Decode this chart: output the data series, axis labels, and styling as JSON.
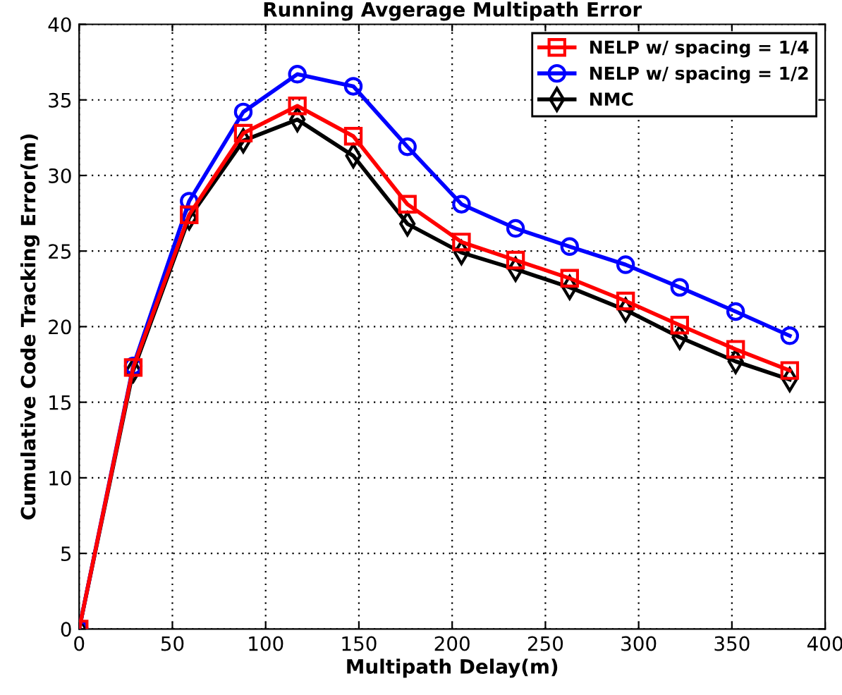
{
  "chart_data": {
    "type": "line",
    "title": "Running Avgerage Multipath Error",
    "xlabel": "Multipath Delay(m)",
    "ylabel": "Cumulative Code Tracking Error(m)",
    "x": [
      0,
      29,
      59,
      88,
      117,
      147,
      176,
      205,
      234,
      263,
      293,
      322,
      352,
      381
    ],
    "series": [
      {
        "name": "NELP w/ spacing = 1/4",
        "color": "#ff0000",
        "marker": "square",
        "values": [
          0,
          17.3,
          27.4,
          32.8,
          34.6,
          32.6,
          28.1,
          25.6,
          24.4,
          23.2,
          21.7,
          20.1,
          18.5,
          17.1
        ]
      },
      {
        "name": "NELP w/ spacing = 1/2",
        "color": "#0000ff",
        "marker": "circle",
        "values": [
          0,
          17.4,
          28.3,
          34.2,
          36.7,
          35.9,
          31.9,
          28.1,
          26.5,
          25.3,
          24.1,
          22.6,
          21.0,
          19.4
        ]
      },
      {
        "name": "NMC",
        "color": "#000000",
        "marker": "diamond",
        "values": [
          0,
          17.1,
          27.2,
          32.3,
          33.7,
          31.3,
          26.8,
          24.9,
          23.8,
          22.6,
          21.1,
          19.3,
          17.7,
          16.5
        ]
      }
    ],
    "xlim": [
      0,
      400
    ],
    "ylim": [
      0,
      40
    ],
    "xticks": [
      0,
      50,
      100,
      150,
      200,
      250,
      300,
      350,
      400
    ],
    "yticks": [
      0,
      5,
      10,
      15,
      20,
      25,
      30,
      35,
      40
    ],
    "grid": true,
    "legend": "top right",
    "line_style": "solid"
  }
}
